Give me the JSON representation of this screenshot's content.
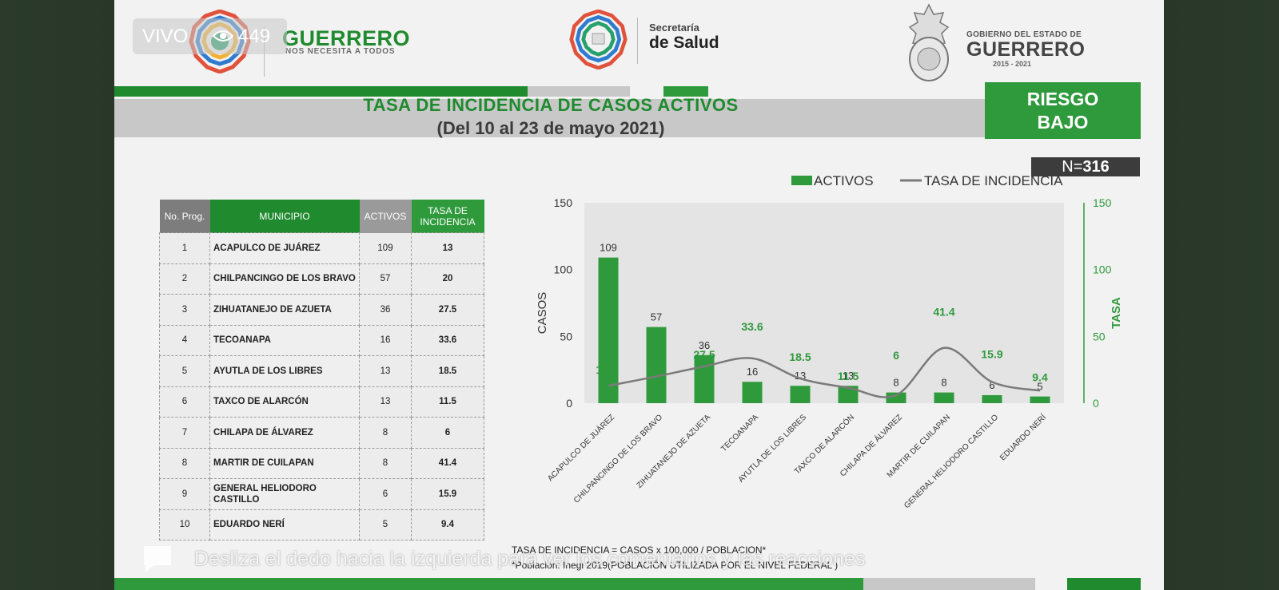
{
  "header": {
    "left_logo_title": "GUERRERO",
    "left_logo_sub": "NOS NECESITA A TODOS",
    "salud_top": "Secretaría",
    "salud_bottom": "de Salud",
    "gob_top": "GOBIERNO DEL ESTADO DE",
    "gob_mid": "GUERRERO",
    "gob_years": "2015 - 2021"
  },
  "title": {
    "line1": "TASA DE INCIDENCIA DE CASOS ACTIVOS",
    "line2": "(Del 10 al 23 de mayo 2021)"
  },
  "risk": {
    "line1": "RIESGO",
    "line2": "BAJO"
  },
  "n_label": "N=",
  "n_value": "316",
  "table": {
    "headers": [
      "No. Prog.",
      "MUNICIPIO",
      "ACTIVOS",
      "TASA DE INCIDENCIA"
    ],
    "rows": [
      {
        "no": "1",
        "municipio": "ACAPULCO DE JUÁREZ",
        "activos": "109",
        "tasa": "13"
      },
      {
        "no": "2",
        "municipio": "CHILPANCINGO DE LOS BRAVO",
        "activos": "57",
        "tasa": "20"
      },
      {
        "no": "3",
        "municipio": "ZIHUATANEJO DE AZUETA",
        "activos": "36",
        "tasa": "27.5"
      },
      {
        "no": "4",
        "municipio": "TECOANAPA",
        "activos": "16",
        "tasa": "33.6"
      },
      {
        "no": "5",
        "municipio": "AYUTLA DE LOS LIBRES",
        "activos": "13",
        "tasa": "18.5"
      },
      {
        "no": "6",
        "municipio": "TAXCO DE ALARCÓN",
        "activos": "13",
        "tasa": "11.5"
      },
      {
        "no": "7",
        "municipio": "CHILAPA DE ÁLVAREZ",
        "activos": "8",
        "tasa": "6"
      },
      {
        "no": "8",
        "municipio": "MARTIR DE CUILAPAN",
        "activos": "8",
        "tasa": "41.4"
      },
      {
        "no": "9",
        "municipio": "GENERAL HELIODORO CASTILLO",
        "activos": "6",
        "tasa": "15.9"
      },
      {
        "no": "10",
        "municipio": "EDUARDO NERÍ",
        "activos": "5",
        "tasa": "9.4"
      }
    ]
  },
  "chart_data": {
    "type": "bar",
    "categories": [
      "ACAPULCO DE JUÁREZ",
      "CHILPANCINGO DE LOS BRAVO",
      "ZIHUATANEJO DE AZUETA",
      "TECOANAPA",
      "AYUTLA DE LOS LIBRES",
      "TAXCO DE ALARCÓN",
      "CHILAPA DE ÁLVAREZ",
      "MARTIR DE CUILAPAN",
      "GENERAL HELIODORO CASTILLO",
      "EDUARDO NERÍ"
    ],
    "series": [
      {
        "name": "ACTIVOS",
        "type": "bar",
        "axis": "left",
        "values": [
          109,
          57,
          36,
          16,
          13,
          13,
          8,
          8,
          6,
          5
        ]
      },
      {
        "name": "TASA DE INCIDENCIA",
        "type": "line",
        "axis": "right",
        "values": [
          13,
          20,
          27.5,
          33.6,
          18.5,
          11.5,
          6,
          41.4,
          15.9,
          9.4
        ]
      }
    ],
    "ylabel": "CASOS",
    "y2label": "TASA",
    "ylim": [
      0,
      150
    ],
    "y2lim": [
      0,
      150
    ],
    "yticks": [
      "0",
      "50",
      "100",
      "150"
    ],
    "legend": "top",
    "colors": {
      "bar": "#2f9a3c",
      "line": "#7a7a7a",
      "tasa_label": "#2f9a3c",
      "value_label": "#333333"
    }
  },
  "footer": {
    "formula": "TASA DE INCIDENCIA = CASOS x 100,000 / POBLACION*",
    "poblacion": "*Población: Inegi 2019(POBLACIÓN UTILIZADA POR EL NIVEL FEDERAL )"
  },
  "overlay": {
    "live": "VIVO",
    "viewers": "449",
    "swipe": "Desliza el dedo hacia la izquierda para ver los comentarios y las reacciones"
  }
}
